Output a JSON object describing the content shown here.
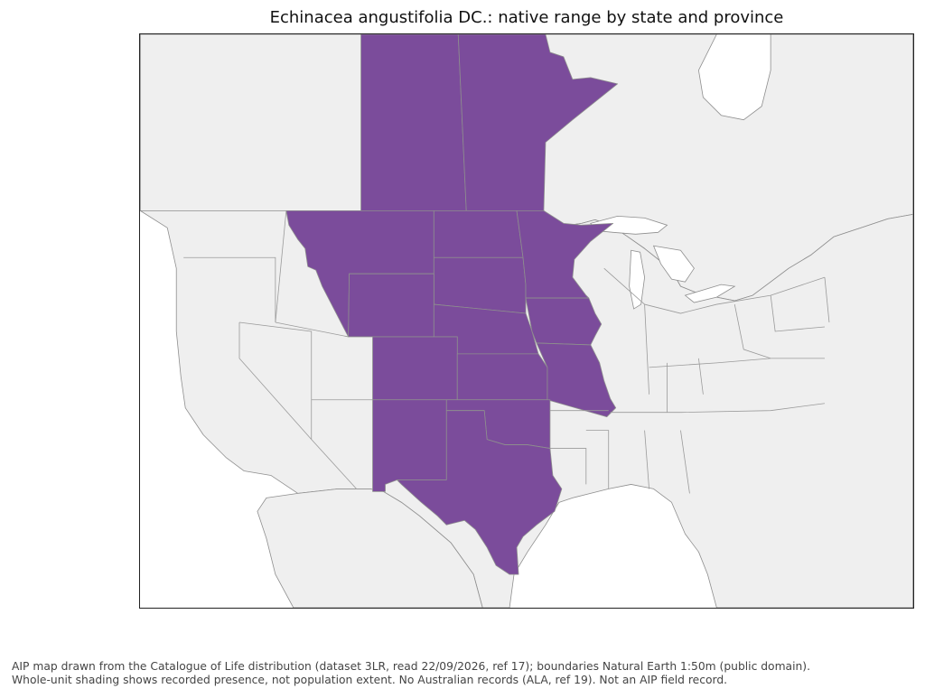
{
  "title": "Echinacea angustifolia DC.: native range by state and province",
  "caption": {
    "line1": "AIP map drawn from the Catalogue of Life distribution (dataset 3LR, read 22/09/2026, ref 17); boundaries Natural Earth 1:50m (public domain).",
    "line2": "Whole-unit shading shows recorded presence, not population extent. No Australian records (ALA, ref 19). Not an AIP field record."
  },
  "colors": {
    "present": "#7b4c9b",
    "absent": "#efefef",
    "border": "#8e8e8e"
  },
  "map_data": {
    "regions": [
      {
        "name": "Saskatchewan",
        "status": "present"
      },
      {
        "name": "Manitoba",
        "status": "present"
      },
      {
        "name": "Montana",
        "status": "present"
      },
      {
        "name": "North Dakota",
        "status": "present"
      },
      {
        "name": "South Dakota",
        "status": "present"
      },
      {
        "name": "Minnesota",
        "status": "present"
      },
      {
        "name": "Wyoming",
        "status": "present"
      },
      {
        "name": "Nebraska",
        "status": "present"
      },
      {
        "name": "Iowa",
        "status": "present"
      },
      {
        "name": "Colorado",
        "status": "present"
      },
      {
        "name": "Kansas",
        "status": "present"
      },
      {
        "name": "Missouri",
        "status": "present"
      },
      {
        "name": "New Mexico",
        "status": "present"
      },
      {
        "name": "Oklahoma",
        "status": "present"
      },
      {
        "name": "Texas",
        "status": "present"
      }
    ]
  }
}
